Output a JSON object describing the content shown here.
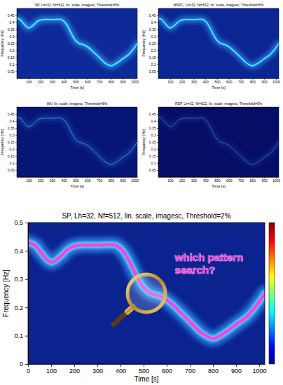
{
  "chart_data": [
    {
      "type": "line",
      "title": "SP, Lh=32, Nf=512, lin. scale, imagesc, Threshold=5%",
      "x_label": "Time [s]",
      "y_label": "Frequency [Hz]",
      "x": [
        0,
        30,
        60,
        100,
        140,
        180,
        220,
        300,
        380,
        410,
        440,
        470,
        500,
        530,
        570,
        610,
        650,
        700,
        750,
        800,
        850,
        900,
        950,
        1000,
        1024
      ],
      "series": [
        {
          "color": "#3ee8ff",
          "values": [
            0.43,
            0.42,
            0.39,
            0.36,
            0.38,
            0.41,
            0.42,
            0.42,
            0.42,
            0.4,
            0.36,
            0.31,
            0.27,
            0.25,
            0.24,
            0.22,
            0.19,
            0.15,
            0.11,
            0.09,
            0.11,
            0.14,
            0.17,
            0.22,
            0.25
          ]
        }
      ],
      "xlim": [
        0,
        1024
      ],
      "ylim": [
        0,
        0.5
      ],
      "xticks": [
        100,
        200,
        300,
        400,
        500,
        600,
        700,
        800,
        900,
        1000
      ],
      "yticks": [
        0.05,
        0.1,
        0.15,
        0.2,
        0.25,
        0.3,
        0.35,
        0.4,
        0.45
      ]
    },
    {
      "type": "line",
      "title": "MSPC, Lh=32, Nf=512, lin. scale, imagesc, Threshold=5%",
      "x_label": "Time [s]",
      "y_label": "Frequency [Hz]",
      "x": [
        0,
        30,
        60,
        100,
        140,
        180,
        220,
        300,
        380,
        410,
        440,
        470,
        500,
        530,
        570,
        610,
        650,
        700,
        750,
        800,
        850,
        900,
        950,
        1000,
        1024
      ],
      "series": [
        {
          "color": "#3ee8ff",
          "values": [
            0.43,
            0.42,
            0.39,
            0.36,
            0.38,
            0.41,
            0.42,
            0.42,
            0.42,
            0.4,
            0.36,
            0.31,
            0.27,
            0.25,
            0.24,
            0.22,
            0.19,
            0.15,
            0.11,
            0.09,
            0.11,
            0.14,
            0.17,
            0.22,
            0.25
          ]
        }
      ],
      "xlim": [
        0,
        1024
      ],
      "ylim": [
        0,
        0.5
      ],
      "xticks": [
        100,
        200,
        300,
        400,
        500,
        600,
        700,
        800,
        900,
        1000
      ],
      "yticks": [
        0.05,
        0.1,
        0.15,
        0.2,
        0.25,
        0.3,
        0.35,
        0.4,
        0.45
      ]
    },
    {
      "type": "line",
      "title": "WV, lin. scale, imagesc, Threshold=5%",
      "x_label": "Time [s]",
      "y_label": "Frequency [Hz]",
      "x": [
        0,
        30,
        60,
        100,
        140,
        180,
        220,
        300,
        380,
        410,
        440,
        470,
        500,
        530,
        570,
        610,
        650,
        700,
        750,
        800,
        850,
        900,
        950,
        1000,
        1024
      ],
      "series": [
        {
          "color": "#5aa8e8",
          "values": [
            0.43,
            0.42,
            0.39,
            0.36,
            0.38,
            0.41,
            0.42,
            0.42,
            0.42,
            0.4,
            0.36,
            0.31,
            0.27,
            0.25,
            0.24,
            0.22,
            0.19,
            0.15,
            0.11,
            0.09,
            0.11,
            0.14,
            0.17,
            0.22,
            0.25
          ]
        }
      ],
      "xlim": [
        0,
        1024
      ],
      "ylim": [
        0,
        0.5
      ],
      "xticks": [
        100,
        200,
        300,
        400,
        500,
        600,
        700,
        800,
        900,
        1000
      ],
      "yticks": [
        0.05,
        0.1,
        0.15,
        0.2,
        0.25,
        0.3,
        0.35,
        0.4,
        0.45
      ]
    },
    {
      "type": "line",
      "title": "RSP, Lh=32, Nf=512, lin. scale, imagesc, Threshold=5%",
      "x_label": "Time [s]",
      "y_label": "Frequency [Hz]",
      "x": [
        0,
        30,
        60,
        100,
        140,
        180,
        220,
        300,
        380,
        410,
        440,
        470,
        500,
        530,
        570,
        610,
        650,
        700,
        750,
        800,
        850,
        900,
        950,
        1000,
        1024
      ],
      "series": [
        {
          "color": "#3f78d0",
          "values": [
            0.43,
            0.42,
            0.39,
            0.36,
            0.38,
            0.41,
            0.42,
            0.42,
            0.42,
            0.4,
            0.36,
            0.31,
            0.27,
            0.25,
            0.24,
            0.22,
            0.19,
            0.15,
            0.11,
            0.09,
            0.11,
            0.14,
            0.17,
            0.22,
            0.25
          ]
        }
      ],
      "xlim": [
        0,
        1024
      ],
      "ylim": [
        0,
        0.5
      ],
      "xticks": [
        100,
        200,
        300,
        400,
        500,
        600,
        700,
        800,
        900,
        1000
      ],
      "yticks": [
        0.05,
        0.1,
        0.15,
        0.2,
        0.25,
        0.3,
        0.35,
        0.4,
        0.45
      ]
    },
    {
      "type": "line",
      "title": "SP, Lh=32, Nf=512, lin. scale, imagesc, Threshold=2%",
      "x_label": "Time [s]",
      "y_label": "Frequency [Hz]",
      "x": [
        0,
        30,
        60,
        100,
        140,
        180,
        220,
        300,
        380,
        410,
        440,
        470,
        500,
        530,
        570,
        610,
        650,
        700,
        750,
        800,
        850,
        900,
        950,
        1000,
        1024
      ],
      "series": [
        {
          "color": "#ff44e0",
          "values": [
            0.43,
            0.42,
            0.39,
            0.36,
            0.38,
            0.41,
            0.42,
            0.42,
            0.42,
            0.4,
            0.36,
            0.31,
            0.27,
            0.25,
            0.24,
            0.22,
            0.19,
            0.15,
            0.11,
            0.09,
            0.11,
            0.14,
            0.17,
            0.22,
            0.25
          ]
        }
      ],
      "xlim": [
        0,
        1024
      ],
      "ylim": [
        0,
        0.5
      ],
      "xticks": [
        0,
        100,
        200,
        300,
        400,
        500,
        600,
        700,
        800,
        900,
        1000
      ],
      "yticks": [
        0,
        0.1,
        0.2,
        0.3,
        0.4,
        0.5
      ],
      "annotations": [
        "which pattern search?"
      ]
    }
  ]
}
